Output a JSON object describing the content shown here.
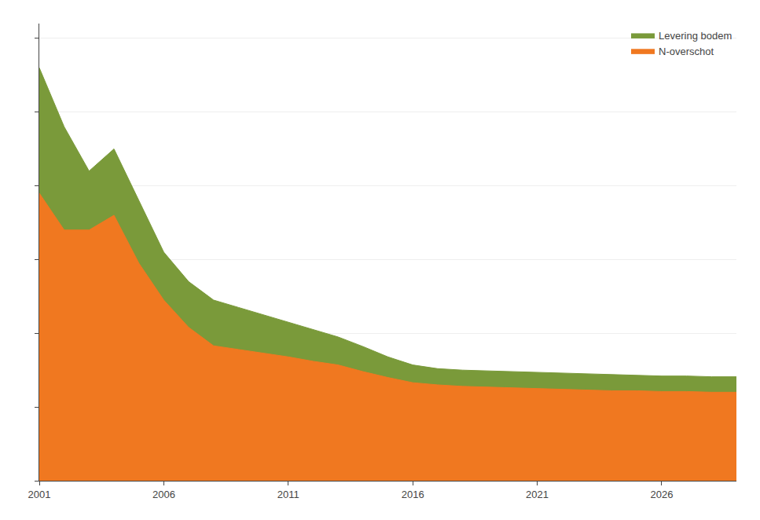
{
  "chart_data": {
    "type": "area",
    "x": [
      2001,
      2002,
      2003,
      2004,
      2005,
      2006,
      2007,
      2008,
      2009,
      2010,
      2011,
      2012,
      2013,
      2014,
      2015,
      2016,
      2017,
      2018,
      2019,
      2020,
      2021,
      2022,
      2023,
      2024,
      2025,
      2026,
      2027,
      2028,
      2029
    ],
    "series": [
      {
        "name": "Levering bodem",
        "color": "#7a9a3a",
        "values": [
          560,
          480,
          420,
          450,
          380,
          310,
          270,
          245,
          235,
          225,
          215,
          205,
          195,
          182,
          168,
          157,
          152,
          150,
          149,
          148,
          147,
          146,
          145,
          144,
          143,
          142,
          142,
          141,
          141
        ]
      },
      {
        "name": "N-overschot",
        "color": "#f07820",
        "values": [
          390,
          340,
          340,
          360,
          295,
          245,
          208,
          183,
          178,
          173,
          168,
          162,
          157,
          148,
          140,
          133,
          130,
          128,
          127,
          126,
          125,
          124,
          123,
          122,
          122,
          121,
          121,
          120,
          120
        ]
      }
    ],
    "xlim": [
      2001,
      2029
    ],
    "xticks": [
      2001,
      2006,
      2011,
      2016,
      2021,
      2026
    ],
    "ylim": [
      0,
      620
    ],
    "yticks": [
      0,
      100,
      200,
      300,
      400,
      500,
      600
    ],
    "tick_labels": "x",
    "grid": true,
    "legend": "upper right"
  }
}
